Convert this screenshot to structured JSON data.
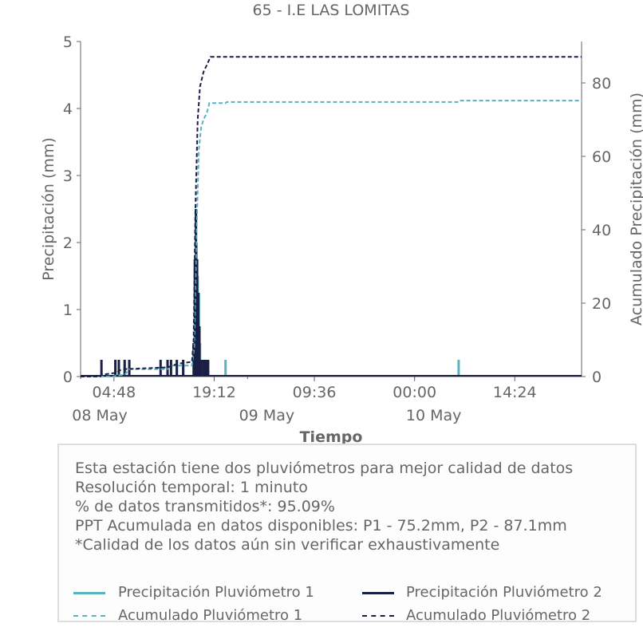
{
  "title": "65 - I.E LAS LOMITAS",
  "info": {
    "lines": [
      "Esta estación tiene dos pluviómetros para mejor calidad de datos",
      "Resolución temporal: 1 minuto",
      "% de datos transmitidos*: 95.09%",
      "PPT Acumulada en datos disponibles: P1 - 75.2mm, P2 - 87.1mm",
      "*Calidad de los datos aún sin verificar exhaustivamente"
    ]
  },
  "legend": [
    {
      "label": "Precipitación Pluviómetro 1",
      "color": "#56b4bf",
      "style": "solid"
    },
    {
      "label": "Precipitación Pluviómetro 2",
      "color": "#1a1f45",
      "style": "solid"
    },
    {
      "label": "Acumulado Pluviómetro 1",
      "color": "#56b4bf",
      "style": "dashed"
    },
    {
      "label": "Acumulado Pluviómetro 2",
      "color": "#1a1f45",
      "style": "dashed"
    }
  ],
  "chart_data": {
    "type": "line",
    "title": "65 - I.E LAS LOMITAS",
    "xlabel": "Tiempo",
    "ylabel": "Precipitación (mm)",
    "y2label": "Acumulado Precipitación (mm)",
    "ylim": [
      0,
      5
    ],
    "y2lim": [
      0,
      91.3
    ],
    "yticks": [
      0,
      1,
      2,
      3,
      4,
      5
    ],
    "y2ticks": [
      0,
      20,
      40,
      60,
      80
    ],
    "xlim": [
      "2024-05-08 00:00",
      "2024-05-11 00:00"
    ],
    "xticks": [
      {
        "t": "2024-05-08 04:48",
        "label": "04:48"
      },
      {
        "t": "2024-05-08 19:12",
        "label": "19:12"
      },
      {
        "t": "2024-05-09 09:36",
        "label": "09:36"
      },
      {
        "t": "2024-05-10 00:00",
        "label": "00:00"
      },
      {
        "t": "2024-05-10 14:24",
        "label": "14:24"
      }
    ],
    "xdates": [
      {
        "t": "2024-05-08 00:00",
        "label": "08 May"
      },
      {
        "t": "2024-05-09 00:00",
        "label": "09 May"
      },
      {
        "t": "2024-05-10 00:00",
        "label": "10 May"
      }
    ],
    "grid": false,
    "series": [
      {
        "name": "Precipitación Pluviómetro 1",
        "axis": "left",
        "style": "solid",
        "color": "#56b4bf",
        "points": [
          [
            "2024-05-08 05:00",
            0.25
          ],
          [
            "2024-05-08 06:20",
            0.25
          ],
          [
            "2024-05-08 07:00",
            0.25
          ],
          [
            "2024-05-08 12:30",
            0.25
          ],
          [
            "2024-05-08 13:50",
            0.25
          ],
          [
            "2024-05-08 14:45",
            0.25
          ],
          [
            "2024-05-08 16:20",
            0.5
          ],
          [
            "2024-05-08 16:30",
            1.5
          ],
          [
            "2024-05-08 16:40",
            2.0
          ],
          [
            "2024-05-08 16:50",
            1.5
          ],
          [
            "2024-05-08 17:00",
            1.25
          ],
          [
            "2024-05-08 17:10",
            0.5
          ],
          [
            "2024-05-08 17:30",
            0.25
          ],
          [
            "2024-05-08 18:10",
            0.25
          ],
          [
            "2024-05-08 20:50",
            0.25
          ],
          [
            "2024-05-10 06:20",
            0.25
          ]
        ]
      },
      {
        "name": "Precipitación Pluviómetro 2",
        "axis": "left",
        "style": "solid",
        "color": "#1a1f45",
        "points": [
          [
            "2024-05-08 03:00",
            0.25
          ],
          [
            "2024-05-08 05:00",
            0.25
          ],
          [
            "2024-05-08 05:30",
            0.25
          ],
          [
            "2024-05-08 06:20",
            0.25
          ],
          [
            "2024-05-08 07:00",
            0.25
          ],
          [
            "2024-05-08 11:30",
            0.25
          ],
          [
            "2024-05-08 12:30",
            0.25
          ],
          [
            "2024-05-08 13:00",
            0.25
          ],
          [
            "2024-05-08 13:50",
            0.25
          ],
          [
            "2024-05-08 14:45",
            0.25
          ],
          [
            "2024-05-08 16:15",
            0.5
          ],
          [
            "2024-05-08 16:25",
            1.75
          ],
          [
            "2024-05-08 16:35",
            2.5
          ],
          [
            "2024-05-08 16:45",
            1.75
          ],
          [
            "2024-05-08 16:55",
            1.25
          ],
          [
            "2024-05-08 17:05",
            0.75
          ],
          [
            "2024-05-08 17:20",
            0.25
          ],
          [
            "2024-05-08 17:40",
            0.25
          ],
          [
            "2024-05-08 18:00",
            0.25
          ],
          [
            "2024-05-08 18:20",
            0.25
          ]
        ]
      },
      {
        "name": "Acumulado Pluviómetro 1",
        "axis": "right",
        "style": "dashed",
        "color": "#56b4bf",
        "points": [
          [
            "2024-05-08 00:00",
            0
          ],
          [
            "2024-05-08 04:50",
            0
          ],
          [
            "2024-05-08 05:00",
            0.25
          ],
          [
            "2024-05-08 06:20",
            0.5
          ],
          [
            "2024-05-08 07:00",
            2
          ],
          [
            "2024-05-08 12:30",
            2
          ],
          [
            "2024-05-08 13:00",
            3
          ],
          [
            "2024-05-08 16:00",
            3
          ],
          [
            "2024-05-08 16:20",
            8
          ],
          [
            "2024-05-08 16:40",
            40
          ],
          [
            "2024-05-08 17:00",
            62
          ],
          [
            "2024-05-08 17:20",
            68
          ],
          [
            "2024-05-08 17:40",
            70
          ],
          [
            "2024-05-08 18:10",
            72
          ],
          [
            "2024-05-08 18:30",
            74.5
          ],
          [
            "2024-05-08 20:50",
            74.5
          ],
          [
            "2024-05-08 21:00",
            74.8
          ],
          [
            "2024-05-10 06:20",
            74.8
          ],
          [
            "2024-05-10 06:30",
            75.2
          ],
          [
            "2024-05-11 00:00",
            75.2
          ]
        ]
      },
      {
        "name": "Acumulado Pluviómetro 2",
        "axis": "right",
        "style": "dashed",
        "color": "#1a1f45",
        "points": [
          [
            "2024-05-08 00:00",
            0
          ],
          [
            "2024-05-08 02:50",
            0
          ],
          [
            "2024-05-08 03:00",
            0.5
          ],
          [
            "2024-05-08 05:00",
            1
          ],
          [
            "2024-05-08 06:00",
            2
          ],
          [
            "2024-05-08 12:30",
            2.5
          ],
          [
            "2024-05-08 14:00",
            3.5
          ],
          [
            "2024-05-08 16:00",
            4
          ],
          [
            "2024-05-08 16:15",
            10
          ],
          [
            "2024-05-08 16:30",
            45
          ],
          [
            "2024-05-08 16:50",
            70
          ],
          [
            "2024-05-08 17:10",
            79
          ],
          [
            "2024-05-08 17:40",
            83
          ],
          [
            "2024-05-08 18:10",
            85
          ],
          [
            "2024-05-08 18:40",
            87.1
          ],
          [
            "2024-05-11 00:00",
            87.1
          ]
        ]
      }
    ]
  }
}
